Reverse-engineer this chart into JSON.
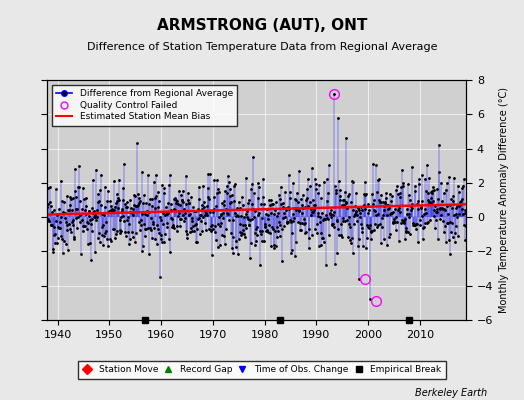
{
  "title": "ARMSTRONG (AUT), ONT",
  "subtitle": "Difference of Station Temperature Data from Regional Average",
  "ylabel": "Monthly Temperature Anomaly Difference (°C)",
  "xlabel_credit": "Berkeley Earth",
  "xlim": [
    1938,
    2019
  ],
  "ylim": [
    -6,
    8
  ],
  "yticks": [
    -6,
    -4,
    -2,
    0,
    2,
    4,
    6,
    8
  ],
  "xticks": [
    1940,
    1950,
    1960,
    1970,
    1980,
    1990,
    2000,
    2010
  ],
  "bias_line_x": [
    1938,
    2019
  ],
  "bias_line_y": [
    0.15,
    0.75
  ],
  "empirical_breaks": [
    1957,
    1983,
    2008
  ],
  "qc_failed_points": [
    [
      1993.5,
      7.2
    ],
    [
      1999.5,
      -3.6
    ],
    [
      2001.5,
      -4.9
    ]
  ],
  "background_color": "#e8e8e8",
  "plot_bg_color": "#d0d0d0",
  "seed": 42
}
